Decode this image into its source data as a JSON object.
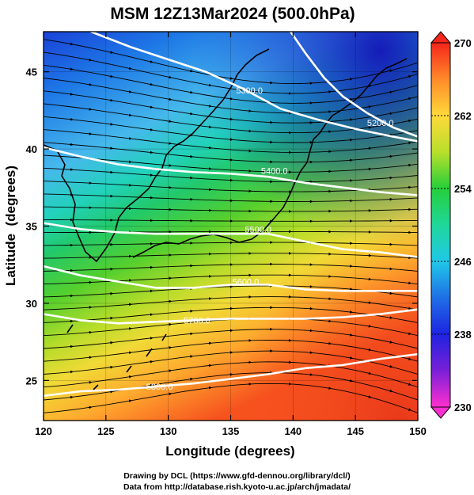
{
  "title": "MSM 12Z13Mar2024 (500.0hPa)",
  "xlabel": "Longitude (degrees)",
  "ylabel": "Latitude  (degrees)",
  "credits": [
    "Drawing by DCL (https://www.gfd-dennou.org/library/dcl/)",
    "Data from http://database.rish.kyoto-u.ac.jp/arch/jmadata/"
  ],
  "chart_data": {
    "type": "heatmap",
    "field": "temperature shading with geopotential height contours and wind streamlines",
    "x_range": [
      120,
      150
    ],
    "y_range": [
      22.4,
      47.6
    ],
    "x_ticks": [
      120,
      125,
      130,
      135,
      140,
      145,
      150
    ],
    "y_ticks": [
      25,
      30,
      35,
      40,
      45
    ],
    "x_tick_labels": [
      "120",
      "125",
      "130",
      "135",
      "140",
      "145",
      "150"
    ],
    "y_tick_labels": [
      "25",
      "30",
      "35",
      "40",
      "45"
    ],
    "colorbar": {
      "range": [
        230,
        270
      ],
      "ticks": [
        230,
        238,
        246,
        254,
        262,
        270
      ],
      "tick_labels": [
        "230",
        "238",
        "246",
        "254",
        "262",
        "270"
      ]
    },
    "contours": [
      {
        "label": "5300.0",
        "label_lon": 136.5,
        "label_lat": 43.8,
        "points": [
          [
            123.8,
            47.6
          ],
          [
            127,
            46.6
          ],
          [
            130,
            45.8
          ],
          [
            133,
            45.0
          ],
          [
            136,
            43.9
          ],
          [
            139,
            42.6
          ],
          [
            142,
            41.9
          ],
          [
            145,
            41.3
          ],
          [
            148,
            40.8
          ],
          [
            150,
            40.5
          ]
        ]
      },
      {
        "label": "5200.0",
        "label_lon": 147.0,
        "label_lat": 41.7,
        "points": [
          [
            139.8,
            47.6
          ],
          [
            141,
            46.2
          ],
          [
            142.5,
            44.6
          ],
          [
            144,
            43.4
          ],
          [
            146,
            42.3
          ],
          [
            148,
            41.4
          ],
          [
            150,
            40.8
          ]
        ]
      },
      {
        "label": "5400.0",
        "label_lon": 138.5,
        "label_lat": 38.6,
        "points": [
          [
            120,
            40.1
          ],
          [
            123,
            39.5
          ],
          [
            126,
            39.0
          ],
          [
            129,
            38.7
          ],
          [
            132,
            38.5
          ],
          [
            135,
            38.4
          ],
          [
            138,
            38.2
          ],
          [
            141,
            37.8
          ],
          [
            144,
            37.5
          ],
          [
            147,
            37.2
          ],
          [
            150,
            37.0
          ]
        ]
      },
      {
        "label": "5500.0",
        "label_lon": 137.2,
        "label_lat": 34.8,
        "points": [
          [
            120,
            35.2
          ],
          [
            123,
            34.8
          ],
          [
            126,
            34.6
          ],
          [
            129,
            34.5
          ],
          [
            132,
            34.5
          ],
          [
            135,
            34.5
          ],
          [
            138,
            34.5
          ],
          [
            141,
            34.0
          ],
          [
            144,
            33.5
          ],
          [
            147,
            33.3
          ],
          [
            150,
            33.0
          ]
        ]
      },
      {
        "label": "5600.0",
        "label_lon": 136.2,
        "label_lat": 31.4,
        "points": [
          [
            120,
            32.4
          ],
          [
            123,
            31.8
          ],
          [
            126,
            31.4
          ],
          [
            129,
            31.0
          ],
          [
            132,
            31.0
          ],
          [
            135,
            31.2
          ],
          [
            138,
            31.2
          ],
          [
            141,
            30.9
          ],
          [
            144,
            30.8
          ],
          [
            147,
            30.8
          ],
          [
            150,
            30.8
          ]
        ]
      },
      {
        "label": "5700.0",
        "label_lon": 132.3,
        "label_lat": 28.9,
        "points": [
          [
            120,
            29.3
          ],
          [
            123,
            28.9
          ],
          [
            126,
            28.7
          ],
          [
            129,
            28.8
          ],
          [
            132,
            28.9
          ],
          [
            135,
            29.0
          ],
          [
            138,
            29.0
          ],
          [
            141,
            29.0
          ],
          [
            144,
            29.1
          ],
          [
            147,
            29.3
          ],
          [
            150,
            29.6
          ]
        ]
      },
      {
        "label": "5800.0",
        "label_lon": 129.3,
        "label_lat": 24.6,
        "points": [
          [
            120,
            24.0
          ],
          [
            123,
            24.3
          ],
          [
            126,
            24.4
          ],
          [
            129,
            24.6
          ],
          [
            132,
            24.8
          ],
          [
            135,
            25.1
          ],
          [
            138,
            25.4
          ],
          [
            141,
            25.8
          ],
          [
            144,
            26.0
          ],
          [
            147,
            26.4
          ],
          [
            150,
            26.7
          ]
        ]
      }
    ]
  }
}
